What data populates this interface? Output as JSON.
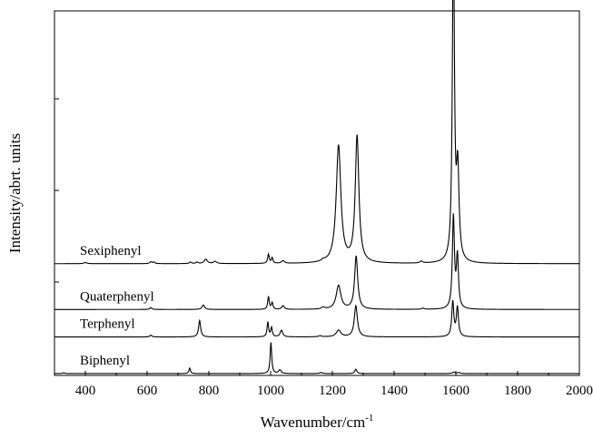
{
  "chart_data": {
    "type": "line",
    "title": "",
    "xlabel": "Wavenumber/cm",
    "xlabel_sup": "-1",
    "ylabel": "Intensity/abrt. units",
    "xlim": [
      300,
      2000
    ],
    "xticks": [
      400,
      600,
      800,
      1000,
      1200,
      1400,
      1600,
      1800,
      2000
    ],
    "y_units": "arbitrary (stacked, offset traces)",
    "grid": false,
    "legend": "inline labels left of each trace",
    "series": [
      {
        "name": "Biphenyl",
        "baseline": 0,
        "peaks": [
          {
            "x": 330,
            "h": 0.02,
            "w": 4
          },
          {
            "x": 738,
            "h": 0.15,
            "w": 3
          },
          {
            "x": 1001,
            "h": 0.85,
            "w": 3
          },
          {
            "x": 1030,
            "h": 0.1,
            "w": 5
          },
          {
            "x": 1163,
            "h": 0.03,
            "w": 5
          },
          {
            "x": 1276,
            "h": 0.12,
            "w": 4
          },
          {
            "x": 1593,
            "h": 0.04,
            "w": 5
          },
          {
            "x": 1610,
            "h": 0.03,
            "w": 5
          }
        ]
      },
      {
        "name": "Terphenyl",
        "baseline": 1,
        "peaks": [
          {
            "x": 612,
            "h": 0.05,
            "w": 4
          },
          {
            "x": 770,
            "h": 0.45,
            "w": 4
          },
          {
            "x": 991,
            "h": 0.4,
            "w": 3
          },
          {
            "x": 1003,
            "h": 0.25,
            "w": 3
          },
          {
            "x": 1035,
            "h": 0.18,
            "w": 5
          },
          {
            "x": 1160,
            "h": 0.03,
            "w": 6
          },
          {
            "x": 1220,
            "h": 0.18,
            "w": 9
          },
          {
            "x": 1276,
            "h": 0.85,
            "w": 6
          },
          {
            "x": 1590,
            "h": 0.95,
            "w": 4
          },
          {
            "x": 1605,
            "h": 0.8,
            "w": 4
          }
        ]
      },
      {
        "name": "Quaterphenyl",
        "baseline": 1.75,
        "peaks": [
          {
            "x": 612,
            "h": 0.05,
            "w": 4
          },
          {
            "x": 782,
            "h": 0.12,
            "w": 5
          },
          {
            "x": 993,
            "h": 0.35,
            "w": 3
          },
          {
            "x": 1005,
            "h": 0.18,
            "w": 3
          },
          {
            "x": 1040,
            "h": 0.1,
            "w": 5
          },
          {
            "x": 1170,
            "h": 0.05,
            "w": 6
          },
          {
            "x": 1220,
            "h": 0.65,
            "w": 9
          },
          {
            "x": 1277,
            "h": 1.45,
            "w": 6
          },
          {
            "x": 1493,
            "h": 0.03,
            "w": 5
          },
          {
            "x": 1592,
            "h": 2.5,
            "w": 4
          },
          {
            "x": 1605,
            "h": 1.4,
            "w": 4
          }
        ]
      },
      {
        "name": "Sexiphenyl",
        "baseline": 3.0,
        "peaks": [
          {
            "x": 400,
            "h": 0.03,
            "w": 6
          },
          {
            "x": 612,
            "h": 0.05,
            "w": 4
          },
          {
            "x": 622,
            "h": 0.04,
            "w": 4
          },
          {
            "x": 740,
            "h": 0.04,
            "w": 4
          },
          {
            "x": 762,
            "h": 0.04,
            "w": 4
          },
          {
            "x": 790,
            "h": 0.12,
            "w": 6
          },
          {
            "x": 820,
            "h": 0.06,
            "w": 6
          },
          {
            "x": 993,
            "h": 0.25,
            "w": 3
          },
          {
            "x": 1005,
            "h": 0.15,
            "w": 3
          },
          {
            "x": 1040,
            "h": 0.07,
            "w": 6
          },
          {
            "x": 1170,
            "h": 0.04,
            "w": 6
          },
          {
            "x": 1220,
            "h": 3.2,
            "w": 9
          },
          {
            "x": 1280,
            "h": 3.45,
            "w": 7
          },
          {
            "x": 1488,
            "h": 0.05,
            "w": 5
          },
          {
            "x": 1592,
            "h": 9.0,
            "w": 4
          },
          {
            "x": 1606,
            "h": 2.4,
            "w": 5
          }
        ]
      }
    ],
    "y_display_max": 9.9,
    "y_display_min": -0.05
  }
}
